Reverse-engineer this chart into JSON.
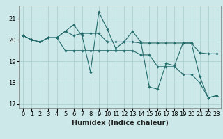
{
  "xlabel": "Humidex (Indice chaleur)",
  "ylabel": "",
  "background_color": "#cde8e8",
  "line_color": "#236b6b",
  "grid_color": "#a8cccc",
  "series": [
    [
      20.2,
      20.0,
      19.9,
      20.1,
      20.1,
      20.4,
      20.7,
      20.2,
      18.5,
      21.3,
      20.5,
      19.6,
      19.9,
      20.4,
      19.9,
      17.8,
      17.7,
      18.9,
      18.8,
      19.85,
      19.85,
      18.3,
      17.3,
      17.4
    ],
    [
      20.2,
      20.0,
      19.9,
      20.1,
      20.1,
      20.4,
      20.2,
      20.3,
      20.3,
      20.3,
      19.9,
      19.9,
      19.9,
      19.9,
      19.85,
      19.85,
      19.85,
      19.85,
      19.85,
      19.85,
      19.85,
      19.4,
      19.35,
      19.35
    ],
    [
      20.2,
      20.0,
      19.9,
      20.1,
      20.1,
      19.5,
      19.5,
      19.5,
      19.5,
      19.5,
      19.5,
      19.5,
      19.5,
      19.5,
      19.3,
      19.3,
      18.75,
      18.75,
      18.75,
      18.4,
      18.4,
      18.0,
      17.3,
      17.4
    ]
  ],
  "xlim": [
    -0.5,
    23.5
  ],
  "ylim": [
    16.8,
    21.6
  ],
  "yticks": [
    17,
    18,
    19,
    20,
    21
  ],
  "xticks": [
    0,
    1,
    2,
    3,
    4,
    5,
    6,
    7,
    8,
    9,
    10,
    11,
    12,
    13,
    14,
    15,
    16,
    17,
    18,
    19,
    20,
    21,
    22,
    23
  ],
  "marker": "D",
  "marker_size": 1.8,
  "linewidth": 0.8,
  "tick_fontsize": 6.0,
  "xlabel_fontsize": 7.0
}
